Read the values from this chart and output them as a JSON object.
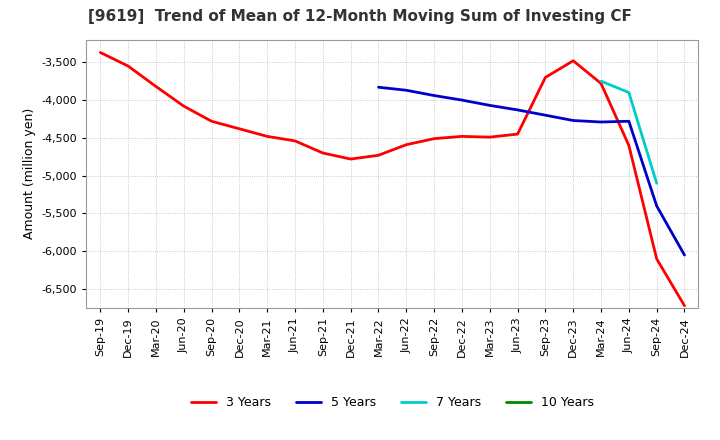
{
  "title": "[9619]  Trend of Mean of 12-Month Moving Sum of Investing CF",
  "ylabel": "Amount (million yen)",
  "ylim": [
    -6750,
    -3200
  ],
  "yticks": [
    -6500,
    -6000,
    -5500,
    -5000,
    -4500,
    -4000,
    -3500
  ],
  "background_color": "#ffffff",
  "grid_color": "#bbbbbb",
  "legend_entries": [
    "3 Years",
    "5 Years",
    "7 Years",
    "10 Years"
  ],
  "line_colors": [
    "#ff0000",
    "#0000cc",
    "#00cccc",
    "#008800"
  ],
  "x_labels": [
    "Sep-19",
    "Dec-19",
    "Mar-20",
    "Jun-20",
    "Sep-20",
    "Dec-20",
    "Mar-21",
    "Jun-21",
    "Sep-21",
    "Dec-21",
    "Mar-22",
    "Jun-22",
    "Sep-22",
    "Dec-22",
    "Mar-23",
    "Jun-23",
    "Sep-23",
    "Dec-23",
    "Mar-24",
    "Jun-24",
    "Sep-24",
    "Dec-24"
  ],
  "series_3y": [
    -3370,
    -3550,
    -3820,
    -4080,
    -4280,
    -4380,
    -4480,
    -4540,
    -4700,
    -4780,
    -4730,
    -4590,
    -4510,
    -4480,
    -4490,
    -4450,
    -3700,
    -3480,
    -3780,
    -4600,
    -6100,
    -6720
  ],
  "series_5y": [
    null,
    null,
    null,
    null,
    null,
    null,
    null,
    null,
    null,
    null,
    -3830,
    -3870,
    -3940,
    -4000,
    -4070,
    -4130,
    -4200,
    -4270,
    -4290,
    -4280,
    -5400,
    -6050
  ],
  "series_7y": [
    null,
    null,
    null,
    null,
    null,
    null,
    null,
    null,
    null,
    null,
    null,
    null,
    null,
    null,
    null,
    null,
    null,
    null,
    -3750,
    -3900,
    -5100,
    null
  ],
  "series_10y": [
    null,
    null,
    null,
    null,
    null,
    null,
    null,
    null,
    null,
    null,
    null,
    null,
    null,
    null,
    null,
    null,
    null,
    null,
    null,
    null,
    null,
    null
  ]
}
